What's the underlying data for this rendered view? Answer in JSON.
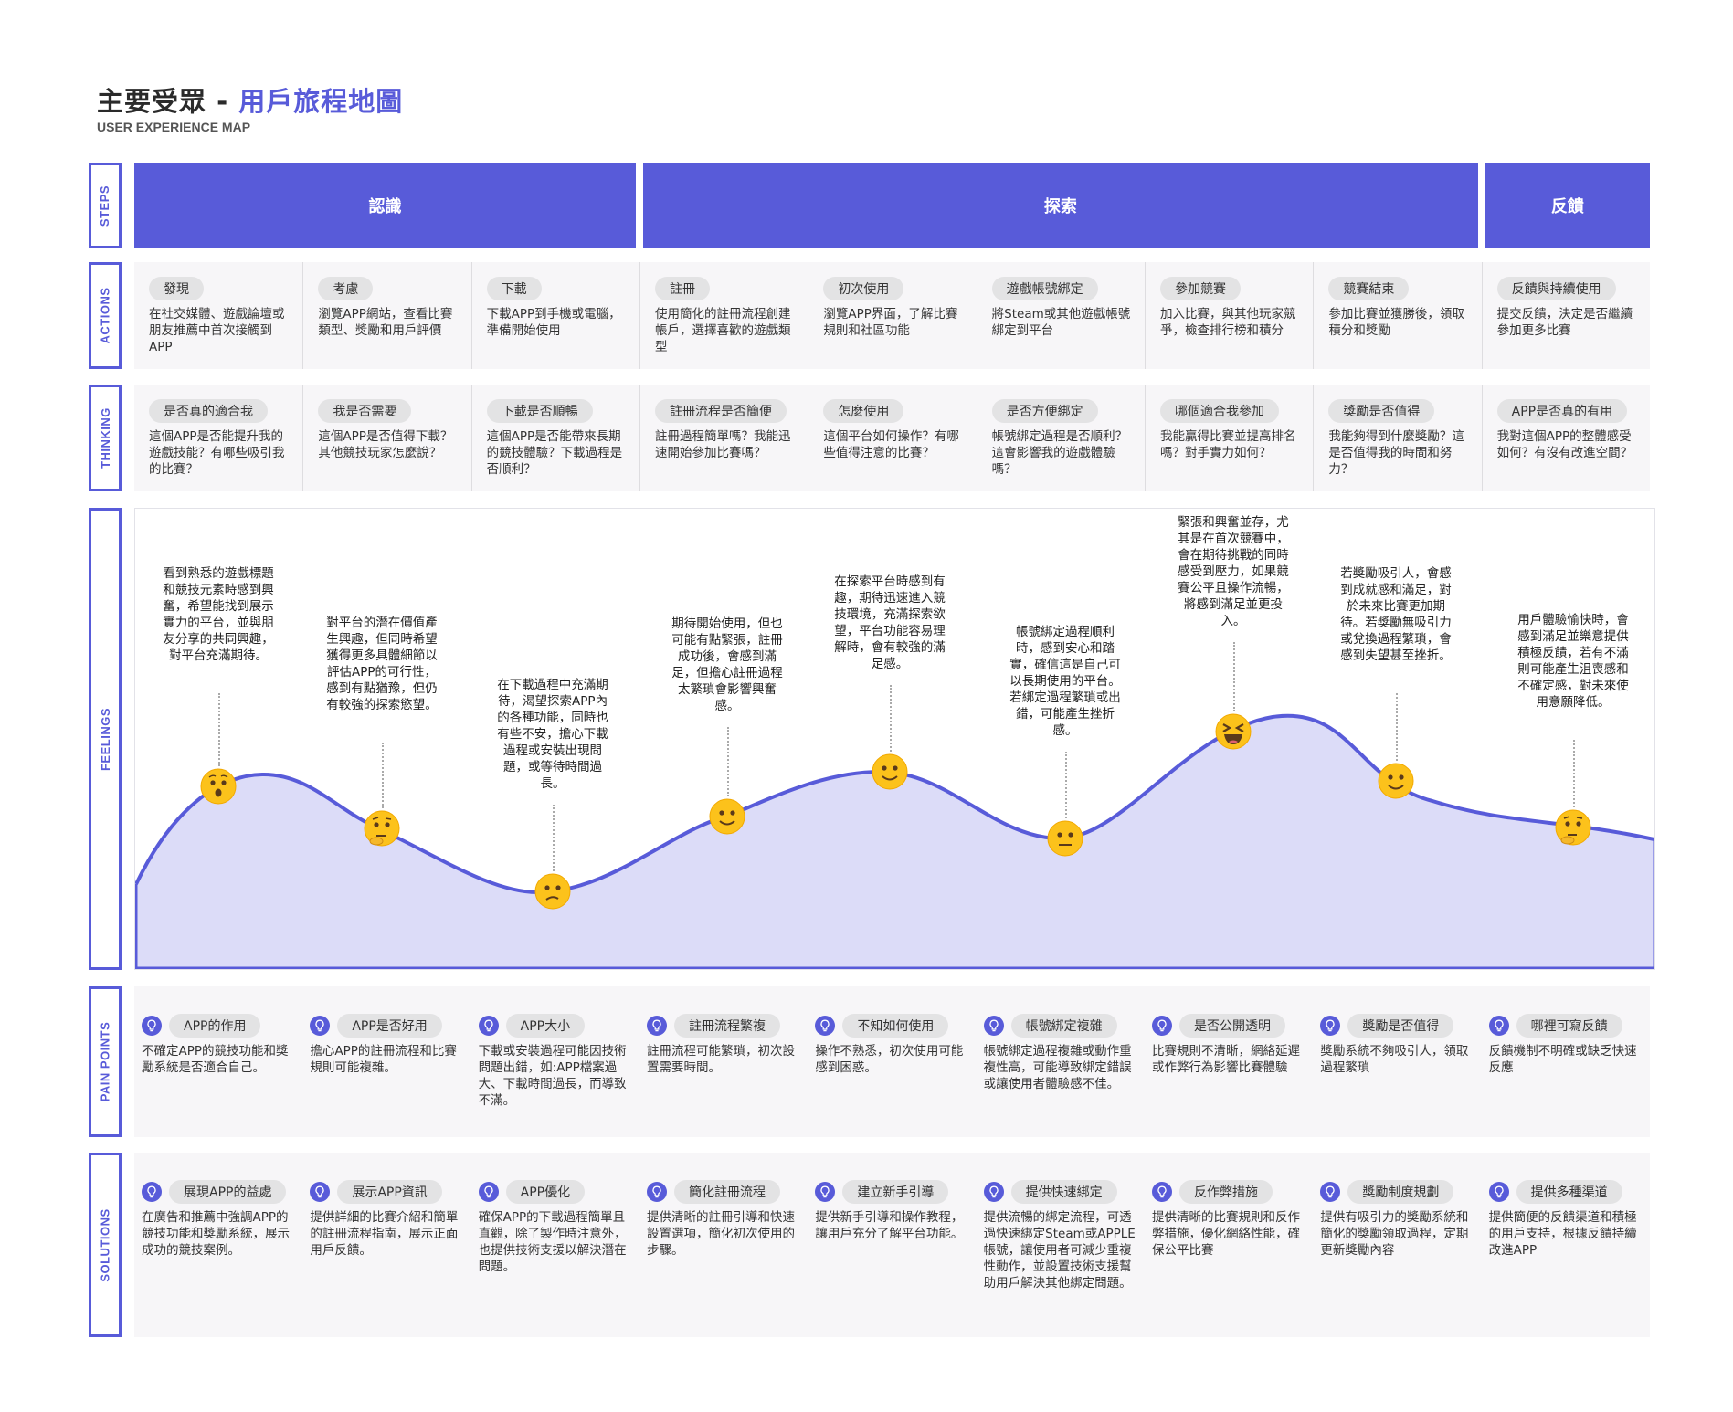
{
  "header": {
    "title_main": "主要受眾 - ",
    "title_accent": "用戶旅程地圖",
    "subtitle": "USER EXPERIENCE MAP"
  },
  "row_labels": {
    "steps": "STEPS",
    "actions": "ACTIONS",
    "thinking": "THINKING",
    "feelings": "FEELINGS",
    "pain_points": "PAIN POINTS",
    "solutions": "SOLUTIONS"
  },
  "colors": {
    "accent": "#585bd9",
    "curve_fill": "#dcdcf8",
    "panel": "#f7f6f8"
  },
  "steps": [
    {
      "label": "認識",
      "span": 3
    },
    {
      "label": "探索",
      "span": 5
    },
    {
      "label": "反饋",
      "span": 1
    }
  ],
  "actions": [
    {
      "tag": "發現",
      "text": "在社交媒體、遊戲論壇或朋友推薦中首次接觸到APP"
    },
    {
      "tag": "考慮",
      "text": "瀏覽APP網站，查看比賽類型、獎勵和用戶評價"
    },
    {
      "tag": "下載",
      "text": "下載APP到手機或電腦，準備開始使用"
    },
    {
      "tag": "註冊",
      "text": "使用簡化的註冊流程創建帳戶，選擇喜歡的遊戲類型"
    },
    {
      "tag": "初次使用",
      "text": "瀏覽APP界面，了解比賽規則和社區功能"
    },
    {
      "tag": "遊戲帳號綁定",
      "text": "將Steam或其他遊戲帳號綁定到平台"
    },
    {
      "tag": "參加競賽",
      "text": "加入比賽，與其他玩家競爭，檢查排行榜和積分"
    },
    {
      "tag": "競賽結束",
      "text": "參加比賽並獲勝後，領取積分和獎勵"
    },
    {
      "tag": "反饋與持續使用",
      "text": "提交反饋，決定是否繼續參加更多比賽"
    }
  ],
  "thinking": [
    {
      "tag": "是否真的適合我",
      "text": "這個APP是否能提升我的遊戲技能？有哪些吸引我的比賽？"
    },
    {
      "tag": "我是否需要",
      "text": "這個APP是否值得下載？其他競技玩家怎麼說？"
    },
    {
      "tag": "下載是否順暢",
      "text": "這個APP是否能帶來長期的競技體驗？下載過程是否順利？"
    },
    {
      "tag": "註冊流程是否簡便",
      "text": "註冊過程簡單嗎？我能迅速開始參加比賽嗎？"
    },
    {
      "tag": "怎麼使用",
      "text": "這個平台如何操作？有哪些值得注意的比賽？"
    },
    {
      "tag": "是否方便綁定",
      "text": "帳號綁定過程是否順利？這會影響我的遊戲體驗嗎？"
    },
    {
      "tag": "哪個適合我參加",
      "text": "我能贏得比賽並提高排名嗎？對手實力如何？"
    },
    {
      "tag": "獎勵是否值得",
      "text": "我能夠得到什麼獎勵？這是否值得我的時間和努力？"
    },
    {
      "tag": "APP是否真的有用",
      "text": "我對這個APP的整體感受如何？有沒有改進空間？"
    }
  ],
  "feelings": [
    {
      "emotion": "hushed",
      "text": "看到熟悉的遊戲標題和競技元素時感到興奮，希望能找到展示實力的平台，並與朋友分享的共同興趣，對平台充滿期待。"
    },
    {
      "emotion": "thinking",
      "text": "對平台的潛在價值產生興趣，但同時希望獲得更多具體細節以評估APP的可行性，感到有點猶豫，但仍有較強的探索慾望。"
    },
    {
      "emotion": "confused",
      "text": "在下載過程中充滿期待，渴望探索APP內的各種功能，同時也有些不安，擔心下載過程或安裝出現問題，或等待時間過長。"
    },
    {
      "emotion": "slightly-smiling",
      "text": "期待開始使用，但也可能有點緊張，註冊成功後，會感到滿足，但擔心註冊過程太繁瑣會影響興奮感。"
    },
    {
      "emotion": "slightly-smiling",
      "text": "在探索平台時感到有趣，期待迅速進入競技環境，充滿探索欲望，平台功能容易理解時，會有較強的滿足感。"
    },
    {
      "emotion": "neutral",
      "text": "帳號綁定過程順利時，感到安心和踏實，確信這是自己可以長期使用的平台。若綁定過程繁瑣或出錯，可能產生挫折感。"
    },
    {
      "emotion": "laughing",
      "text": "緊張和興奮並存，尤其是在首次競賽中，會在期待挑戰的同時感受到壓力，如果競賽公平且操作流暢，將感到滿足並更投入。"
    },
    {
      "emotion": "slightly-smiling",
      "text": "若獎勵吸引人，會感到成就感和滿足，對於未來比賽更加期待。若獎勵無吸引力或兌換過程繁瑣，會感到失望甚至挫折。"
    },
    {
      "emotion": "thinking",
      "text": "用戶體驗愉快時，會感到滿足並樂意提供積極反饋，若有不滿則可能產生沮喪感和不確定感，對未來使用意願降低。"
    }
  ],
  "pain_points": [
    {
      "tag": "APP的作用",
      "text": "不確定APP的競技功能和獎勵系統是否適合自己。"
    },
    {
      "tag": "APP是否好用",
      "text": "擔心APP的註冊流程和比賽規則可能複雜。"
    },
    {
      "tag": "APP大小",
      "text": "下載或安裝過程可能因技術問題出錯，如:APP檔案過大、下載時間過長，而導致不滿。"
    },
    {
      "tag": "註冊流程繁複",
      "text": "註冊流程可能繁瑣，初次設置需要時間。"
    },
    {
      "tag": "不知如何使用",
      "text": "操作不熟悉，初次使用可能感到困惑。"
    },
    {
      "tag": "帳號綁定複雜",
      "text": "帳號綁定過程複雜或動作重複性高，可能導致綁定錯誤或讓使用者體驗感不佳。"
    },
    {
      "tag": "是否公開透明",
      "text": "比賽規則不清晰，網絡延遲或作弊行為影響比賽體驗"
    },
    {
      "tag": "獎勵是否值得",
      "text": "獎勵系統不夠吸引人，領取過程繁瑣"
    },
    {
      "tag": "哪裡可寫反饋",
      "text": "反饋機制不明確或缺乏快速反應"
    }
  ],
  "solutions": [
    {
      "tag": "展現APP的益處",
      "text": "在廣告和推薦中強調APP的競技功能和獎勵系統，展示成功的競技案例。"
    },
    {
      "tag": "展示APP資訊",
      "text": "提供詳細的比賽介紹和簡單的註冊流程指南，展示正面用戶反饋。"
    },
    {
      "tag": "APP優化",
      "text": "確保APP的下載過程簡單且直觀，除了製作時注意外，也提供技術支援以解決潛在問題。"
    },
    {
      "tag": "簡化註冊流程",
      "text": "提供清晰的註冊引導和快速設置選項，簡化初次使用的步驟。"
    },
    {
      "tag": "建立新手引導",
      "text": "提供新手引導和操作教程，讓用戶充分了解平台功能。"
    },
    {
      "tag": "提供快速綁定",
      "text": "提供流暢的綁定流程，可透過快速綁定Steam或APPLE帳號，讓使用者可減少重複性動作，並設置技術支援幫助用戶解決其他綁定問題。"
    },
    {
      "tag": "反作弊措施",
      "text": "提供清晰的比賽規則和反作弊措施，優化網絡性能，確保公平比賽"
    },
    {
      "tag": "獎勵制度規劃",
      "text": "提供有吸引力的獎勵系統和簡化的獎勵領取過程，定期更新獎勵內容"
    },
    {
      "tag": "提供多種渠道",
      "text": "提供簡便的反饋渠道和積極的用戶支持，根據反饋持續改進APP"
    }
  ]
}
